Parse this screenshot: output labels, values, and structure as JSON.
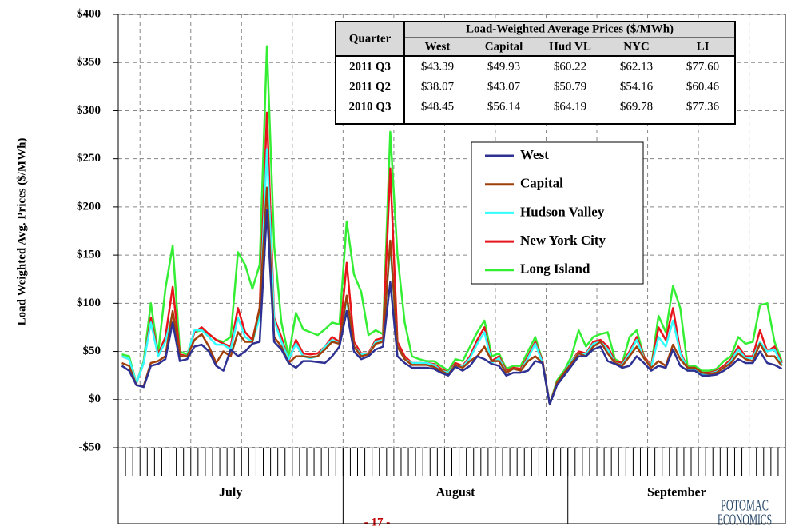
{
  "chart_data": {
    "type": "line",
    "y_label": "Load Weighted Avg. Prices  ($/MWh)",
    "months": [
      {
        "label": "July",
        "days": 31
      },
      {
        "label": "August",
        "days": 31
      },
      {
        "label": "September",
        "days": 30
      }
    ],
    "ylim": [
      -50,
      400
    ],
    "yticks": [
      {
        "value": -50,
        "label": "-$50"
      },
      {
        "value": 0,
        "label": "$0"
      },
      {
        "value": 50,
        "label": "$50"
      },
      {
        "value": 100,
        "label": "$100"
      },
      {
        "value": 150,
        "label": "$150"
      },
      {
        "value": 200,
        "label": "$200"
      },
      {
        "value": 250,
        "label": "$250"
      },
      {
        "value": 300,
        "label": "$300"
      },
      {
        "value": 350,
        "label": "$350"
      },
      {
        "value": 400,
        "label": "$400"
      }
    ],
    "grid": true,
    "series": [
      {
        "name": "West",
        "color": "#2e3192",
        "values": [
          35,
          30,
          15,
          13,
          35,
          37,
          42,
          80,
          40,
          42,
          55,
          57,
          50,
          35,
          30,
          52,
          45,
          50,
          58,
          60,
          197,
          60,
          52,
          38,
          33,
          40,
          40,
          39,
          38,
          45,
          55,
          92,
          50,
          42,
          45,
          52,
          55,
          122,
          45,
          38,
          33,
          33,
          33,
          32,
          28,
          25,
          34,
          30,
          35,
          45,
          42,
          37,
          35,
          25,
          28,
          28,
          30,
          40,
          38,
          -5,
          15,
          25,
          35,
          45,
          45,
          52,
          55,
          40,
          37,
          33,
          35,
          45,
          38,
          30,
          35,
          33,
          52,
          35,
          30,
          30,
          25,
          25,
          26,
          30,
          35,
          42,
          38,
          38,
          50,
          38,
          36,
          32
        ]
      },
      {
        "name": "Capital",
        "color": "#a0400a",
        "values": [
          38,
          35,
          15,
          14,
          38,
          40,
          45,
          92,
          45,
          45,
          62,
          68,
          55,
          38,
          50,
          45,
          70,
          60,
          60,
          95,
          220,
          65,
          55,
          38,
          45,
          45,
          44,
          45,
          52,
          60,
          58,
          108,
          55,
          45,
          47,
          58,
          60,
          165,
          55,
          42,
          36,
          36,
          36,
          34,
          30,
          26,
          36,
          33,
          40,
          45,
          55,
          40,
          40,
          28,
          32,
          30,
          40,
          45,
          38,
          -5,
          18,
          28,
          38,
          48,
          45,
          55,
          60,
          48,
          38,
          35,
          45,
          55,
          43,
          33,
          40,
          35,
          57,
          42,
          33,
          33,
          28,
          27,
          28,
          33,
          38,
          48,
          42,
          40,
          58,
          45,
          45,
          35
        ]
      },
      {
        "name": "Hudson Valley",
        "color": "#33ffff",
        "values": [
          45,
          42,
          17,
          38,
          80,
          45,
          60,
          90,
          45,
          45,
          72,
          72,
          65,
          57,
          57,
          52,
          85,
          65,
          60,
          85,
          260,
          82,
          60,
          42,
          58,
          45,
          43,
          45,
          55,
          62,
          58,
          105,
          55,
          47,
          47,
          60,
          62,
          160,
          55,
          42,
          38,
          38,
          38,
          36,
          30,
          28,
          36,
          34,
          43,
          58,
          70,
          38,
          43,
          28,
          32,
          30,
          43,
          58,
          38,
          -5,
          18,
          28,
          40,
          48,
          47,
          58,
          60,
          52,
          38,
          36,
          48,
          62,
          43,
          34,
          65,
          55,
          82,
          48,
          32,
          32,
          27,
          27,
          29,
          33,
          40,
          52,
          43,
          43,
          60,
          50,
          52,
          36
        ]
      },
      {
        "name": "New York City",
        "color": "#e8141b",
        "values": [
          45,
          42,
          17,
          38,
          85,
          47,
          65,
          117,
          47,
          45,
          70,
          75,
          68,
          62,
          58,
          55,
          95,
          70,
          62,
          95,
          298,
          85,
          65,
          40,
          62,
          48,
          47,
          48,
          55,
          65,
          60,
          142,
          60,
          48,
          48,
          62,
          64,
          240,
          60,
          45,
          38,
          38,
          38,
          37,
          32,
          28,
          38,
          35,
          45,
          62,
          75,
          40,
          45,
          30,
          33,
          32,
          45,
          60,
          40,
          -5,
          18,
          28,
          40,
          50,
          48,
          60,
          62,
          55,
          40,
          38,
          50,
          65,
          45,
          35,
          75,
          62,
          95,
          50,
          33,
          33,
          28,
          28,
          30,
          35,
          42,
          55,
          45,
          45,
          72,
          50,
          55,
          38
        ]
      },
      {
        "name": "Long Island",
        "color": "#33ee33",
        "values": [
          47,
          45,
          17,
          40,
          100,
          48,
          115,
          160,
          50,
          47,
          70,
          72,
          68,
          62,
          60,
          65,
          153,
          140,
          115,
          140,
          367,
          160,
          80,
          45,
          90,
          73,
          70,
          67,
          73,
          80,
          78,
          185,
          130,
          112,
          67,
          72,
          68,
          278,
          150,
          80,
          45,
          42,
          40,
          40,
          35,
          30,
          42,
          40,
          55,
          70,
          82,
          45,
          48,
          32,
          35,
          35,
          50,
          65,
          40,
          -5,
          20,
          30,
          45,
          72,
          55,
          65,
          68,
          70,
          42,
          38,
          65,
          72,
          45,
          35,
          87,
          70,
          118,
          95,
          35,
          35,
          30,
          30,
          32,
          40,
          45,
          65,
          58,
          60,
          98,
          100,
          60,
          40
        ]
      }
    ],
    "table": {
      "row_header": "Quarter",
      "title": "Load-Weighted Average Prices ($/MWh)",
      "columns": [
        "West",
        "Capital",
        "Hud VL",
        "NYC",
        "LI"
      ],
      "rows": [
        [
          "2011 Q3",
          "$43.39",
          "$49.93",
          "$60.22",
          "$62.13",
          "$77.60"
        ],
        [
          "2011 Q2",
          "$38.07",
          "$43.07",
          "$50.79",
          "$54.16",
          "$60.46"
        ],
        [
          "2010 Q3",
          "$48.45",
          "$56.14",
          "$64.19",
          "$69.78",
          "$77.36"
        ]
      ]
    }
  },
  "footer": {
    "page_number": "- 17 -",
    "logo_line1": "POTOMAC",
    "logo_line2": "ECONOMICS"
  }
}
